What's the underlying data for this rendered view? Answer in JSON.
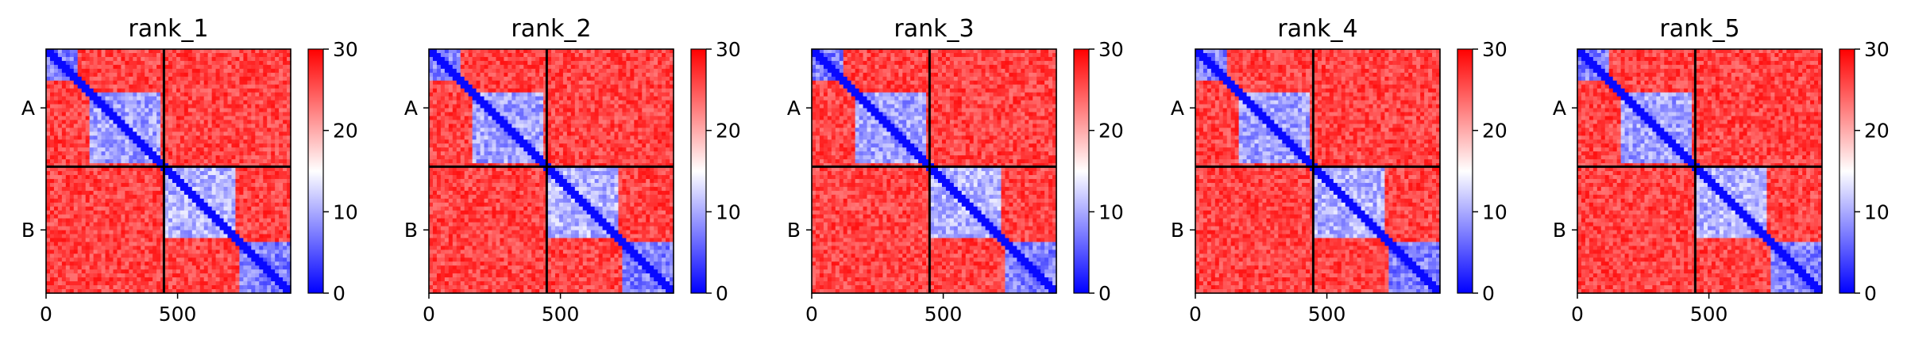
{
  "chart_data": {
    "type": "heatmap",
    "colormap": {
      "name": "bwr",
      "colors": [
        "#0000ff",
        "#ffffff",
        "#ff0000"
      ],
      "vmin": 0,
      "vmax": 30
    },
    "colorbar_ticks": [
      "0",
      "10",
      "20",
      "30"
    ],
    "matrix_size": 930,
    "chain_boundary": 448,
    "chains": [
      "A",
      "B"
    ],
    "x_ticks": [
      {
        "value": 0,
        "label": "0"
      },
      {
        "value": 500,
        "label": "500"
      }
    ],
    "panels": [
      {
        "title": "rank_1"
      },
      {
        "title": "rank_2"
      },
      {
        "title": "rank_3"
      },
      {
        "title": "rank_4"
      },
      {
        "title": "rank_5"
      }
    ],
    "domains": [
      {
        "range": [
          0,
          120
        ],
        "value": 4
      },
      {
        "range": [
          160,
          430
        ],
        "value": 6
      },
      {
        "range": [
          450,
          720
        ],
        "value": 7
      },
      {
        "range": [
          735,
          930
        ],
        "value": 4
      }
    ],
    "off_diagonal_value": 29,
    "grid": false
  }
}
